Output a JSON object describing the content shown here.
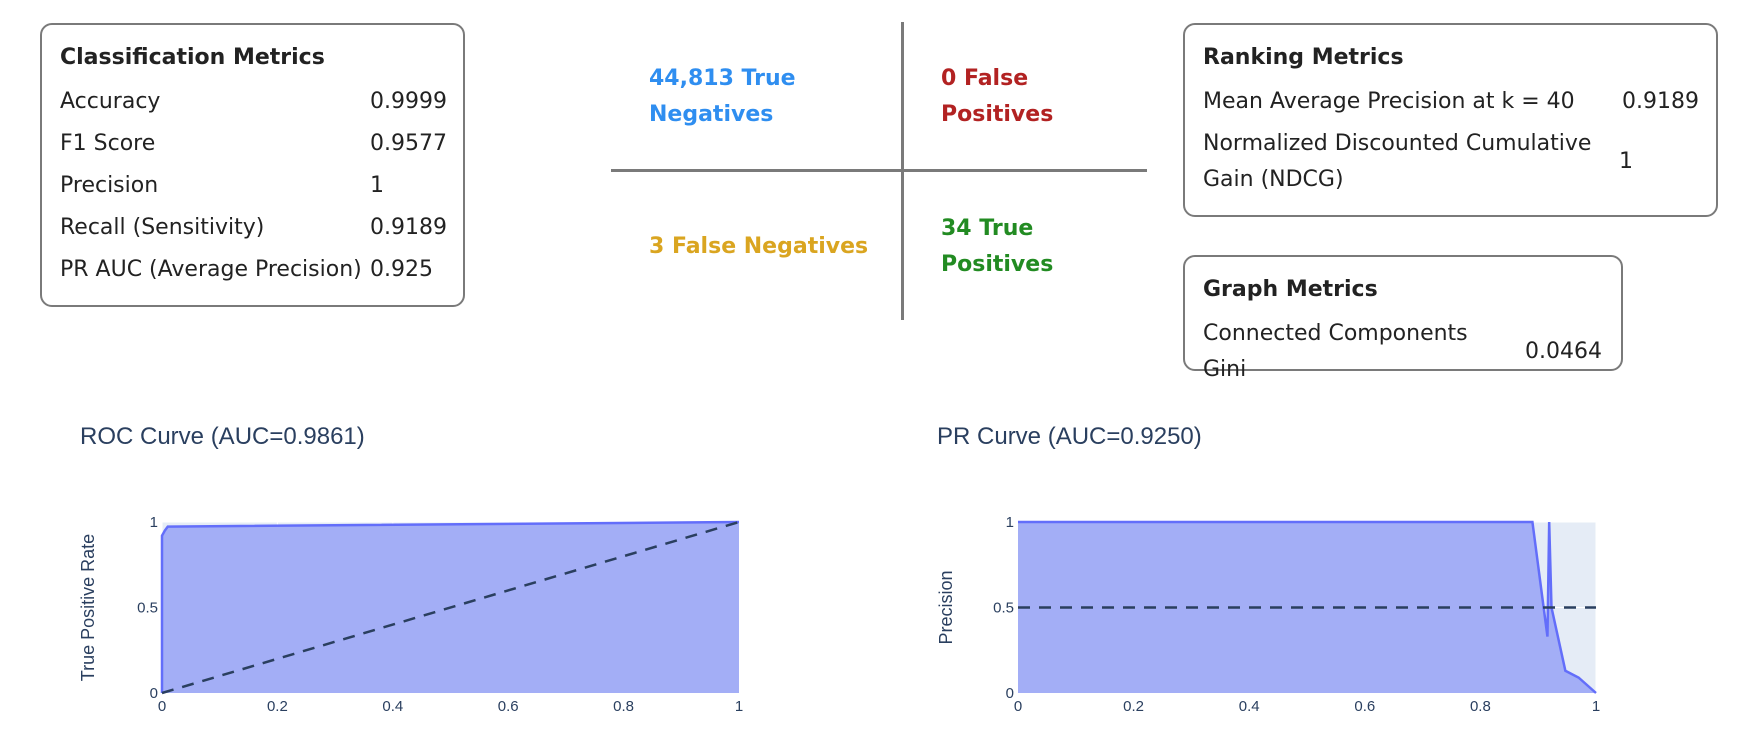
{
  "classification": {
    "title": "Classification Metrics",
    "rows": [
      {
        "label": "Accuracy",
        "value": "0.9999"
      },
      {
        "label": "F1 Score",
        "value": "0.9577"
      },
      {
        "label": "Precision",
        "value": "1"
      },
      {
        "label": "Recall (Sensitivity)",
        "value": "0.9189"
      },
      {
        "label": "PR AUC (Average Precision)",
        "value": "0.925"
      }
    ]
  },
  "confusion_matrix": {
    "tn": "44,813 True Negatives",
    "fp": "0 False Positives",
    "fn": "3 False Negatives",
    "tp": "34 True Positives",
    "colors": {
      "tn": "#2f8ef0",
      "fp": "#b22222",
      "fn": "#daa520",
      "tp": "#228b22"
    }
  },
  "ranking": {
    "title": "Ranking Metrics",
    "rows": [
      {
        "label": "Mean Average Precision at k = 40",
        "value": "0.9189"
      },
      {
        "label": "Normalized Discounted Cumulative Gain (NDCG)",
        "value": "1"
      }
    ]
  },
  "graph": {
    "title": "Graph Metrics",
    "rows": [
      {
        "label": "Connected Components Gini",
        "value": "0.0464"
      }
    ]
  },
  "chart_data": [
    {
      "type": "area",
      "title": "ROC Curve (AUC=0.9861)",
      "xlabel": "",
      "ylabel": "True Positive Rate",
      "xlim": [
        0,
        1
      ],
      "ylim": [
        0,
        1
      ],
      "xticks": [
        "0",
        "0.2",
        "0.4",
        "0.6",
        "0.8",
        "1"
      ],
      "yticks": [
        "0",
        "0.5",
        "1"
      ],
      "series": [
        {
          "x": [
            0,
            0,
            0.005,
            0.01,
            1
          ],
          "y": [
            0,
            0.92,
            0.95,
            0.973,
            1
          ]
        }
      ],
      "reference": {
        "x": [
          0,
          1
        ],
        "y": [
          0,
          1
        ],
        "style": "dashed"
      },
      "fill_color": "#a3aef6",
      "line_color": "#636efa",
      "plot_bg": "#e5ecf6"
    },
    {
      "type": "area",
      "title": "PR Curve (AUC=0.9250)",
      "xlabel": "",
      "ylabel": "Precision",
      "xlim": [
        0,
        1
      ],
      "ylim": [
        0,
        1
      ],
      "xticks": [
        "0",
        "0.2",
        "0.4",
        "0.6",
        "0.8",
        "1"
      ],
      "yticks": [
        "0",
        "0.5",
        "1"
      ],
      "series": [
        {
          "x": [
            0,
            0.89,
            0.916,
            0.919,
            0.923,
            0.947,
            0.97,
            1
          ],
          "y": [
            1,
            1,
            0.33,
            1,
            0.5,
            0.13,
            0.09,
            0
          ]
        }
      ],
      "reference": {
        "x": [
          0,
          1
        ],
        "y": [
          0.5,
          0.5
        ],
        "style": "dashed"
      },
      "fill_color": "#a3aef6",
      "line_color": "#636efa",
      "plot_bg": "#e5ecf6"
    }
  ]
}
